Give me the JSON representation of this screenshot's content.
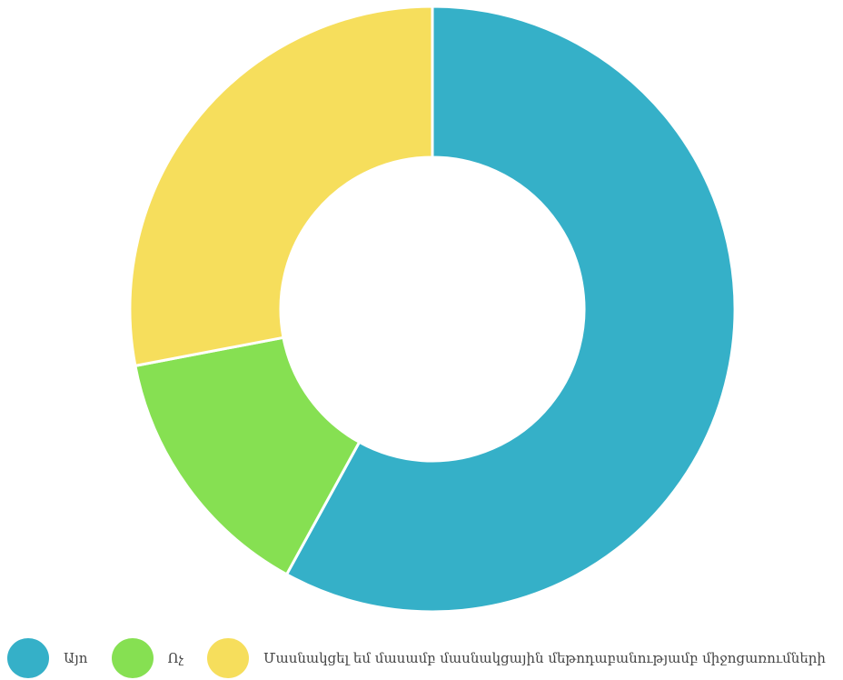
{
  "chart_data": {
    "type": "pie",
    "variant": "donut",
    "title": "",
    "categories": [
      "Այո",
      "Ոչ",
      "Մասնակցել եմ մասամբ մասնակցային մեթոդաբանությամբ միջոցառումների"
    ],
    "values": [
      58,
      14,
      28
    ],
    "colors": [
      "#35B0C8",
      "#86E052",
      "#F6DE5C"
    ],
    "legend_position": "bottom-left"
  }
}
